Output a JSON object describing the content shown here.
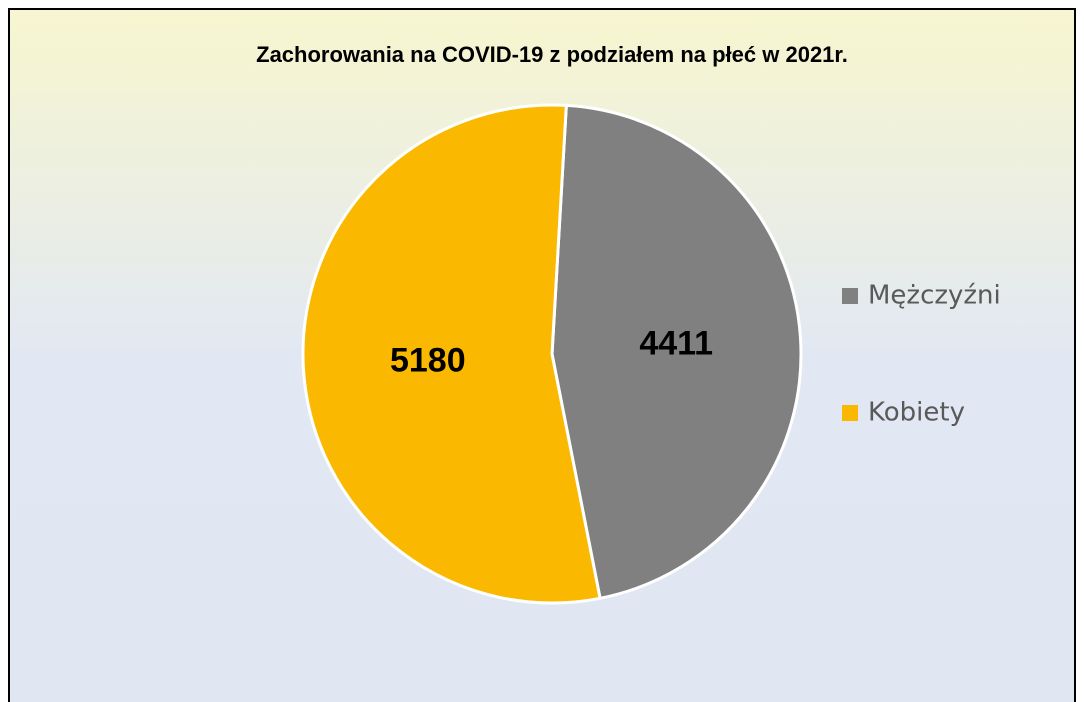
{
  "chart_data": {
    "type": "pie",
    "title": "Zachorowania na COVID-19 z podziałem na płeć w 2021r.",
    "categories": [
      "Mężczyźni",
      "Kobiety"
    ],
    "values": [
      4411,
      5180
    ],
    "colors": [
      "#808080",
      "#fbb800"
    ],
    "legend": "right"
  }
}
